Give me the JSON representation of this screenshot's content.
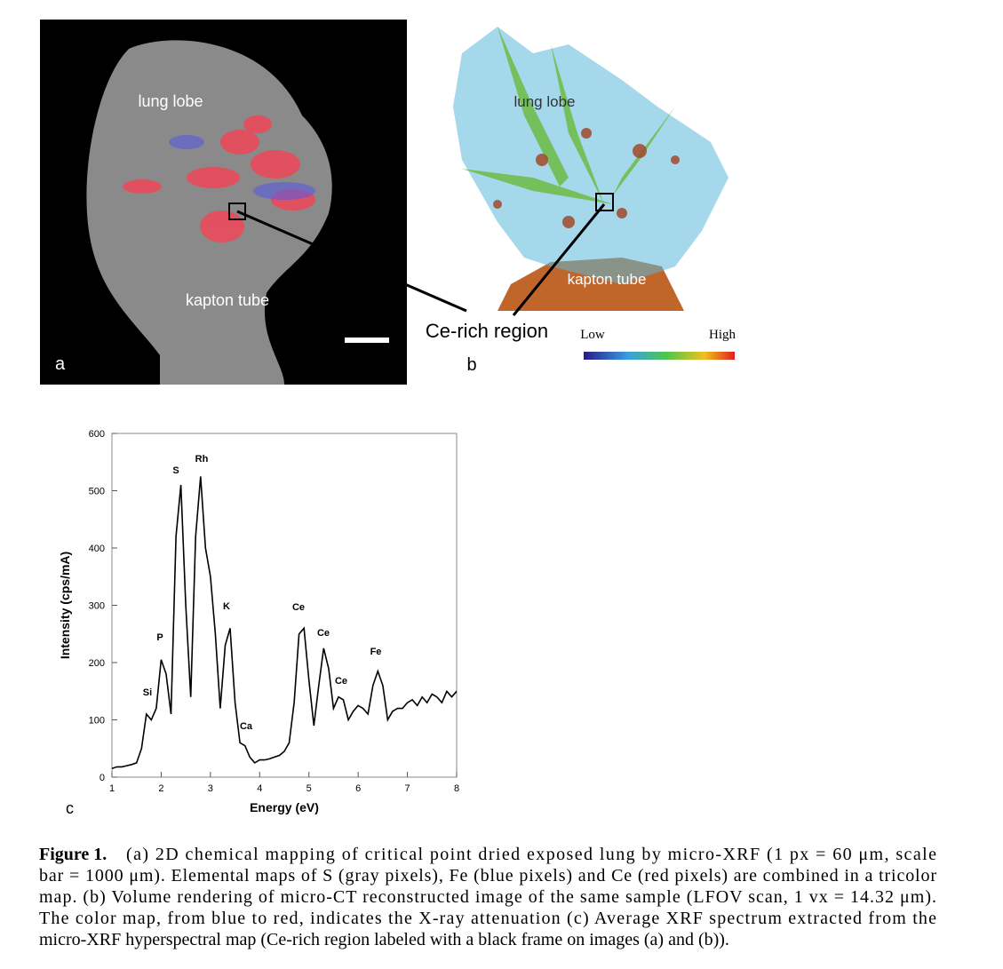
{
  "panel_a": {
    "labels": [
      "lung lobe",
      "kapton tube"
    ],
    "panel_label": "a"
  },
  "panel_b": {
    "labels": [
      "lung lobe",
      "kapton tube"
    ],
    "callout": "Ce-rich region",
    "panel_label": "b",
    "colorbar_low": "Low",
    "colorbar_high": "High"
  },
  "chart_data": {
    "type": "line",
    "panel_label": "c",
    "xlabel": "Energy (eV)",
    "ylabel": "Intensity (cps/mA)",
    "color": "#000000",
    "x": [
      1.0,
      1.1,
      1.2,
      1.3,
      1.4,
      1.5,
      1.6,
      1.7,
      1.8,
      1.9,
      2.0,
      2.1,
      2.2,
      2.3,
      2.4,
      2.5,
      2.6,
      2.7,
      2.8,
      2.9,
      3.0,
      3.1,
      3.2,
      3.3,
      3.4,
      3.5,
      3.6,
      3.7,
      3.8,
      3.9,
      4.0,
      4.1,
      4.2,
      4.3,
      4.4,
      4.5,
      4.6,
      4.7,
      4.8,
      4.9,
      5.0,
      5.1,
      5.2,
      5.3,
      5.4,
      5.5,
      5.6,
      5.7,
      5.8,
      5.9,
      6.0,
      6.1,
      6.2,
      6.3,
      6.4,
      6.5,
      6.6,
      6.7,
      6.8,
      6.9,
      7.0,
      7.1,
      7.2,
      7.3,
      7.4,
      7.5,
      7.6,
      7.7,
      7.8,
      7.9,
      8.0
    ],
    "values": [
      15,
      18,
      18,
      20,
      22,
      25,
      50,
      110,
      100,
      120,
      205,
      180,
      110,
      420,
      510,
      300,
      140,
      420,
      525,
      400,
      350,
      250,
      120,
      230,
      260,
      130,
      60,
      55,
      35,
      25,
      30,
      30,
      32,
      35,
      38,
      45,
      60,
      130,
      250,
      260,
      170,
      90,
      160,
      225,
      190,
      120,
      140,
      135,
      100,
      115,
      125,
      120,
      110,
      160,
      185,
      160,
      100,
      115,
      120,
      120,
      130,
      135,
      125,
      140,
      130,
      145,
      140,
      130,
      150,
      140,
      150
    ],
    "annotations": [
      "Si",
      "P",
      "S",
      "Rh",
      "K",
      "Ca",
      "Ce",
      "Ce",
      "Ce",
      "Fe"
    ],
    "xlim": [
      1,
      8
    ],
    "xticks": [
      1,
      2,
      3,
      4,
      5,
      6,
      7,
      8
    ],
    "ylim": [
      0,
      600
    ],
    "yticks": [
      0,
      100,
      200,
      300,
      400,
      500,
      600
    ]
  },
  "caption": {
    "label": "Figure 1.",
    "lines": [
      "(a) 2D chemical mapping of critical point dried exposed lung by micro-XRF (1 px = 60 μm, scale",
      "bar = 1000 μm). Elemental maps of S (gray pixels), Fe (blue pixels) and Ce (red pixels) are combined in a tricolor",
      "map. (b) Volume rendering of micro-CT reconstructed image of the same sample (LFOV scan, 1 vx = 14.32 μm).",
      "The color map, from blue to red, indicates the X-ray attenuation (c) Average XRF spectrum extracted from the",
      "micro-XRF hyperspectral map (Ce-rich region labeled with a black frame on images (a) and (b))."
    ]
  }
}
